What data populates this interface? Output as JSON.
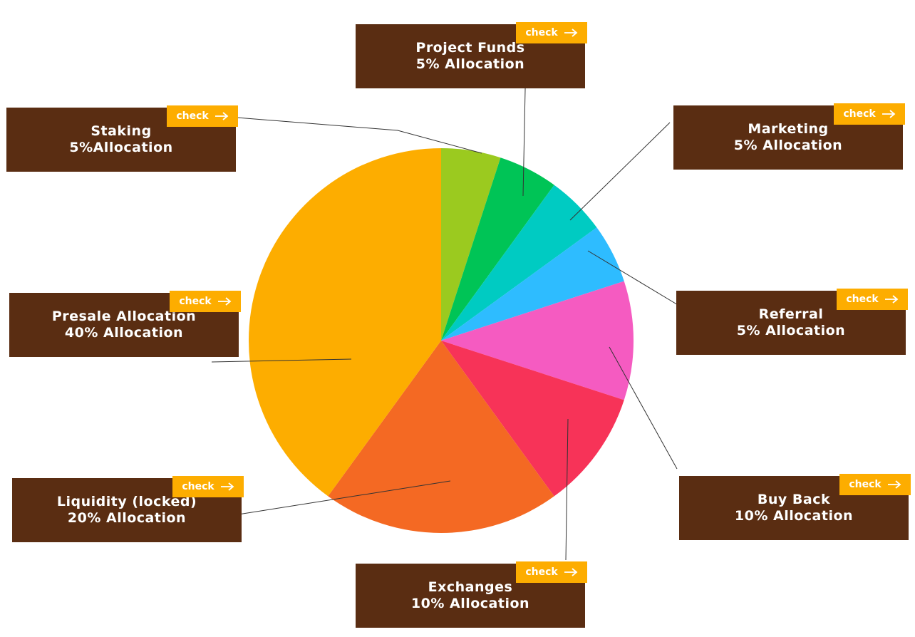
{
  "check_label": "check",
  "chart_data": {
    "type": "pie",
    "start_angle_deg": 0,
    "direction": "clockwise",
    "slices": [
      {
        "label": "Staking",
        "value": 5,
        "color": "#9bca1f"
      },
      {
        "label": "Project Funds",
        "value": 5,
        "color": "#00c456"
      },
      {
        "label": "Marketing",
        "value": 5,
        "color": "#00cbc2"
      },
      {
        "label": "Referral",
        "value": 5,
        "color": "#2ebcff"
      },
      {
        "label": "Buy Back",
        "value": 10,
        "color": "#f55bc1"
      },
      {
        "label": "Exchanges",
        "value": 10,
        "color": "#f73358"
      },
      {
        "label": "Liquidity (locked)",
        "value": 20,
        "color": "#f46923"
      },
      {
        "label": "Presale Allocation",
        "value": 40,
        "color": "#fdad00"
      }
    ]
  },
  "cards": [
    {
      "name": "project-funds",
      "title": "Project Funds",
      "allocation": "5% Allocation"
    },
    {
      "name": "staking",
      "title": "Staking",
      "allocation": "5%Allocation"
    },
    {
      "name": "marketing",
      "title": "Marketing",
      "allocation": "5% Allocation"
    },
    {
      "name": "presale",
      "title": "Presale Allocation",
      "allocation": "40% Allocation"
    },
    {
      "name": "referral",
      "title": "Referral",
      "allocation": "5% Allocation"
    },
    {
      "name": "liquidity",
      "title": "Liquidity (locked)",
      "allocation": "20% Allocation"
    },
    {
      "name": "buy-back",
      "title": "Buy Back",
      "allocation": "10% Allocation"
    },
    {
      "name": "exchanges",
      "title": "Exchanges",
      "allocation": "10% Allocation"
    }
  ]
}
